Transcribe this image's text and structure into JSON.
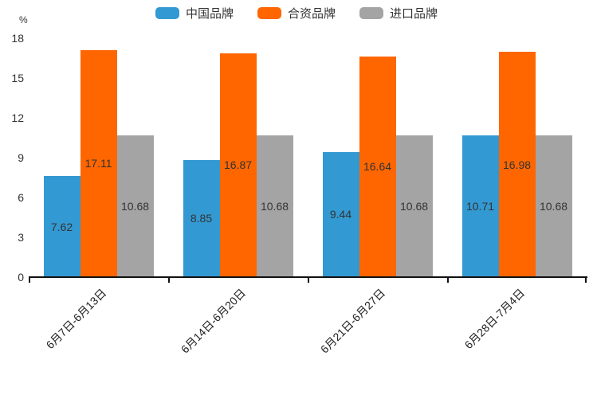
{
  "chart_data": {
    "type": "bar",
    "title": "",
    "unit_label": "%",
    "xlabel": "",
    "ylabel": "%",
    "categories": [
      "6月7日-6月13日",
      "6月14日-6月20日",
      "6月21日-6月27日",
      "6月28日-7月4日"
    ],
    "series": [
      {
        "name": "中国品牌",
        "color": "#3399D2",
        "values": [
          7.62,
          8.85,
          9.44,
          10.71
        ]
      },
      {
        "name": "合资品牌",
        "color": "#FF6600",
        "values": [
          17.11,
          16.87,
          16.64,
          16.98
        ]
      },
      {
        "name": "进口品牌",
        "color": "#A4A4A4",
        "values": [
          10.68,
          10.68,
          10.68,
          10.68
        ]
      }
    ],
    "ylim": [
      0,
      18
    ],
    "yticks": [
      0,
      3,
      6,
      9,
      12,
      15,
      18
    ],
    "legend_position": "top-center",
    "grid": false,
    "bar_value_labels_inside": true,
    "axis_color": "#111111",
    "label_color": "#333333"
  }
}
